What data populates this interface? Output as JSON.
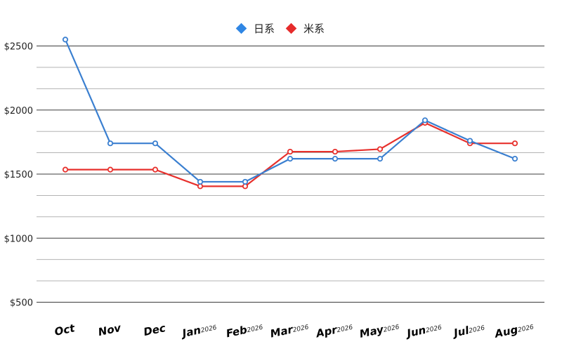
{
  "chart_data": {
    "type": "line",
    "categories": [
      "Oct",
      "Nov",
      "Dec",
      "Jan",
      "Feb",
      "Mar",
      "Apr",
      "May",
      "Jun",
      "Jul",
      "Aug"
    ],
    "category_suffix": [
      "",
      "",
      "",
      "2026",
      "2026",
      "2026",
      "2026",
      "2026",
      "2026",
      "2026",
      "2026"
    ],
    "y_tick_labels": [
      "$500",
      "$1000",
      "$1500",
      "$2000",
      "$2500"
    ],
    "y_tick_values": [
      500,
      1000,
      1500,
      2000,
      2500
    ],
    "ylim": [
      500,
      2550
    ],
    "grid": true,
    "legend_position": "top-center",
    "series": [
      {
        "name": "日系",
        "color": "#3a7fd0",
        "legend_color": "#2f86e4",
        "values": [
          2550,
          1740,
          1740,
          1440,
          1440,
          1620,
          1620,
          1620,
          1920,
          1760,
          1620
        ]
      },
      {
        "name": "米系",
        "color": "#e7302c",
        "legend_color": "#e62b2b",
        "values": [
          1535,
          1535,
          1535,
          1405,
          1405,
          1675,
          1675,
          1695,
          1900,
          1740,
          1740
        ]
      }
    ]
  }
}
